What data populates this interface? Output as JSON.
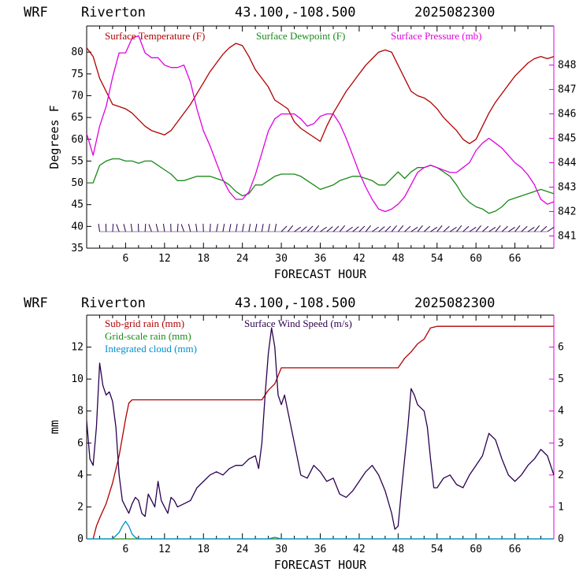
{
  "header": {
    "model": "WRF",
    "station": "Riverton",
    "coords": "43.100,-108.500",
    "date": "2025082300"
  },
  "colors": {
    "temperature": "#b00000",
    "dewpoint": "#1a8a1a",
    "pressure": "#e000e0",
    "subgrid_rain": "#b00000",
    "grid_rain": "#1a8a1a",
    "cloud": "#0090d0",
    "wind_speed": "#2a0050",
    "barb": "#2a0050",
    "frame_left": "#000000",
    "frame_right": "#e000e0"
  },
  "chart_data": [
    {
      "type": "line",
      "xlabel": "FORECAST HOUR",
      "ylabel": "Degrees F",
      "xlim": [
        0,
        72
      ],
      "ylim": [
        35,
        86
      ],
      "y2lim": [
        840.5,
        849.6
      ],
      "x_ticks": [
        6,
        12,
        18,
        24,
        30,
        36,
        42,
        48,
        54,
        60,
        66
      ],
      "y_ticks": [
        35,
        40,
        45,
        50,
        55,
        60,
        65,
        70,
        75,
        80
      ],
      "y2_ticks": [
        841,
        842,
        843,
        844,
        845,
        846,
        847,
        848
      ],
      "legend": [
        "Surface Temperature (F)",
        "Surface Dewpoint (F)",
        "Surface Pressure (mb)"
      ],
      "series": [
        {
          "name": "Surface Temperature (F)",
          "axis": "left",
          "x": [
            0,
            1,
            2,
            3,
            4,
            5,
            6,
            7,
            8,
            9,
            10,
            11,
            12,
            13,
            14,
            15,
            16,
            17,
            18,
            19,
            20,
            21,
            22,
            23,
            24,
            25,
            26,
            27,
            28,
            29,
            30,
            31,
            32,
            33,
            34,
            35,
            36,
            37,
            38,
            39,
            40,
            41,
            42,
            43,
            44,
            45,
            46,
            47,
            48,
            49,
            50,
            51,
            52,
            53,
            54,
            55,
            56,
            57,
            58,
            59,
            60,
            61,
            62,
            63,
            64,
            65,
            66,
            67,
            68,
            69,
            70,
            71,
            72
          ],
          "values": [
            81,
            79,
            74,
            71,
            68,
            67.5,
            67,
            66,
            64.5,
            63,
            62,
            61.5,
            61,
            62,
            64,
            66,
            68,
            70.5,
            73,
            75.5,
            77.5,
            79.5,
            81,
            82,
            81.5,
            79,
            76,
            74,
            72,
            69,
            68,
            67,
            64,
            62.5,
            61.5,
            60.5,
            59.5,
            63,
            66,
            68.5,
            71,
            73,
            75,
            77,
            78.5,
            80,
            80.5,
            80,
            77,
            74,
            71,
            70,
            69.5,
            68.5,
            67,
            65,
            63.5,
            62,
            60,
            59,
            60,
            63,
            66,
            68.5,
            70.5,
            72.5,
            74.5,
            76,
            77.5,
            78.5,
            79,
            78.5,
            79
          ]
        },
        {
          "name": "Surface Dewpoint (F)",
          "axis": "left",
          "x": [
            0,
            1,
            2,
            3,
            4,
            5,
            6,
            7,
            8,
            9,
            10,
            11,
            12,
            13,
            14,
            15,
            16,
            17,
            18,
            19,
            20,
            21,
            22,
            23,
            24,
            25,
            26,
            27,
            28,
            29,
            30,
            31,
            32,
            33,
            34,
            35,
            36,
            37,
            38,
            39,
            40,
            41,
            42,
            43,
            44,
            45,
            46,
            47,
            48,
            49,
            50,
            51,
            52,
            53,
            54,
            55,
            56,
            57,
            58,
            59,
            60,
            61,
            62,
            63,
            64,
            65,
            66,
            67,
            68,
            69,
            70,
            71,
            72
          ],
          "values": [
            50,
            50,
            54,
            55,
            55.5,
            55.5,
            55,
            55,
            54.5,
            55,
            55,
            54,
            53,
            52,
            50.5,
            50.5,
            51,
            51.5,
            51.5,
            51.5,
            51,
            50.5,
            49.5,
            48,
            47,
            47.5,
            49.5,
            49.5,
            50.5,
            51.5,
            52,
            52,
            52,
            51.5,
            50.5,
            49.5,
            48.5,
            49,
            49.5,
            50.5,
            51,
            51.5,
            51.5,
            51,
            50.5,
            49.5,
            49.5,
            51,
            52.5,
            51,
            52.5,
            53.5,
            53.5,
            54,
            53.5,
            52.5,
            51.5,
            49.5,
            47,
            45.5,
            44.5,
            44,
            43,
            43.5,
            44.5,
            46,
            46.5,
            47,
            47.5,
            48,
            48.5,
            48,
            47.5
          ]
        },
        {
          "name": "Surface Pressure (mb)",
          "axis": "right",
          "x": [
            0,
            1,
            2,
            3,
            4,
            5,
            6,
            7,
            8,
            9,
            10,
            11,
            12,
            13,
            14,
            15,
            16,
            17,
            18,
            19,
            20,
            21,
            22,
            23,
            24,
            25,
            26,
            27,
            28,
            29,
            30,
            31,
            32,
            33,
            34,
            35,
            36,
            37,
            38,
            39,
            40,
            41,
            42,
            43,
            44,
            45,
            46,
            47,
            48,
            49,
            50,
            51,
            52,
            53,
            54,
            55,
            56,
            57,
            58,
            59,
            60,
            61,
            62,
            63,
            64,
            65,
            66,
            67,
            68,
            69,
            70,
            71,
            72
          ],
          "values": [
            845.2,
            844.3,
            845.5,
            846.3,
            847.5,
            848.5,
            848.5,
            849.1,
            849.2,
            848.5,
            848.3,
            848.3,
            848,
            847.9,
            847.9,
            848,
            847.3,
            846.2,
            845.3,
            844.7,
            844,
            843.3,
            842.8,
            842.5,
            842.5,
            842.8,
            843.5,
            844.4,
            845.3,
            845.8,
            846,
            846,
            846,
            845.8,
            845.5,
            845.6,
            845.9,
            846,
            846,
            845.6,
            845,
            844.3,
            843.6,
            843,
            842.5,
            842.1,
            842,
            842.1,
            842.3,
            842.6,
            843.1,
            843.6,
            843.8,
            843.9,
            843.8,
            843.7,
            843.6,
            843.6,
            843.8,
            844,
            844.5,
            844.8,
            845,
            844.8,
            844.6,
            844.3,
            844,
            843.8,
            843.5,
            843.1,
            842.5,
            842.3,
            842.4
          ]
        }
      ]
    },
    {
      "type": "line",
      "xlabel": "FORECAST HOUR",
      "ylabel": "mm",
      "xlim": [
        0,
        72
      ],
      "ylim": [
        0,
        14
      ],
      "y2lim": [
        0,
        7
      ],
      "x_ticks": [
        6,
        12,
        18,
        24,
        30,
        36,
        42,
        48,
        54,
        60,
        66
      ],
      "y_ticks": [
        0,
        2,
        4,
        6,
        8,
        10,
        12
      ],
      "y2_ticks": [
        0,
        1,
        2,
        3,
        4,
        5,
        6
      ],
      "legend": [
        "Sub-grid rain (mm)",
        "Grid-scale rain (mm)",
        "Integrated cloud (mm)",
        "Surface Wind Speed (m/s)"
      ],
      "series": [
        {
          "name": "Sub-grid rain (mm)",
          "axis": "left",
          "x": [
            1,
            1.5,
            2,
            3,
            4,
            5,
            6,
            6.5,
            7,
            8,
            10,
            12,
            18,
            24,
            27,
            28,
            29,
            30,
            32,
            36,
            42,
            48,
            49,
            50,
            51,
            52,
            53,
            54,
            60,
            66,
            72
          ],
          "values": [
            0,
            0.8,
            1.3,
            2.2,
            3.5,
            5.2,
            7.5,
            8.5,
            8.7,
            8.7,
            8.7,
            8.7,
            8.7,
            8.7,
            8.7,
            9.3,
            9.7,
            10.7,
            10.7,
            10.7,
            10.7,
            10.7,
            11.3,
            11.7,
            12.2,
            12.5,
            13.2,
            13.3,
            13.3,
            13.3,
            13.3
          ]
        },
        {
          "name": "Grid-scale rain (mm)",
          "axis": "left",
          "x": [
            0,
            72
          ],
          "values": [
            0,
            0
          ]
        },
        {
          "name": "Integrated cloud (mm)",
          "axis": "left",
          "x": [
            0,
            4,
            5,
            5.5,
            6,
            6.5,
            7,
            7.5,
            8,
            9,
            28,
            29,
            30,
            72
          ],
          "values": [
            0,
            0,
            0.4,
            0.8,
            1.1,
            0.8,
            0.3,
            0.1,
            0,
            0,
            0,
            0.1,
            0,
            0
          ]
        },
        {
          "name": "Surface Wind Speed (m/s)",
          "axis": "right",
          "x": [
            0,
            0.5,
            1,
            1.5,
            2,
            2.5,
            3,
            3.5,
            4,
            4.5,
            5,
            5.5,
            6,
            6.5,
            7,
            7.5,
            8,
            8.5,
            9,
            9.5,
            10,
            10.5,
            11,
            11.5,
            12,
            12.5,
            13,
            13.5,
            14,
            15,
            16,
            17,
            18,
            19,
            20,
            21,
            22,
            23,
            24,
            25,
            26,
            26.5,
            27,
            27.5,
            28,
            28.5,
            29,
            29.5,
            30,
            30.5,
            31,
            32,
            33,
            34,
            35,
            36,
            37,
            38,
            39,
            40,
            41,
            42,
            43,
            44,
            45,
            46,
            47,
            47.5,
            48,
            48.5,
            49,
            49.5,
            50,
            50.5,
            51,
            51.5,
            52,
            52.5,
            53,
            53.5,
            54,
            55,
            56,
            57,
            58,
            59,
            60,
            61,
            62,
            63,
            64,
            65,
            66,
            67,
            68,
            69,
            70,
            71,
            72
          ],
          "values": [
            3.7,
            2.5,
            2.3,
            3.5,
            5.5,
            4.8,
            4.5,
            4.6,
            4.3,
            3.5,
            2.0,
            1.2,
            1.0,
            0.8,
            1.1,
            1.3,
            1.2,
            0.8,
            0.7,
            1.4,
            1.2,
            1.0,
            1.8,
            1.2,
            1.0,
            0.8,
            1.3,
            1.2,
            1.0,
            1.1,
            1.2,
            1.6,
            1.8,
            2.0,
            2.1,
            2.0,
            2.2,
            2.3,
            2.3,
            2.5,
            2.6,
            2.2,
            3.0,
            4.5,
            5.8,
            6.6,
            6.0,
            4.5,
            4.2,
            4.5,
            4.0,
            3.0,
            2.0,
            1.9,
            2.3,
            2.1,
            1.8,
            1.9,
            1.4,
            1.3,
            1.5,
            1.8,
            2.1,
            2.3,
            2.0,
            1.5,
            0.8,
            0.3,
            0.4,
            1.5,
            2.5,
            3.5,
            4.7,
            4.5,
            4.2,
            4.1,
            4.0,
            3.5,
            2.5,
            1.6,
            1.6,
            1.9,
            2.0,
            1.7,
            1.6,
            2.0,
            2.3,
            2.6,
            3.3,
            3.1,
            2.5,
            2.0,
            1.8,
            2.0,
            2.3,
            2.5,
            2.8,
            2.6,
            2.0
          ]
        }
      ]
    }
  ]
}
